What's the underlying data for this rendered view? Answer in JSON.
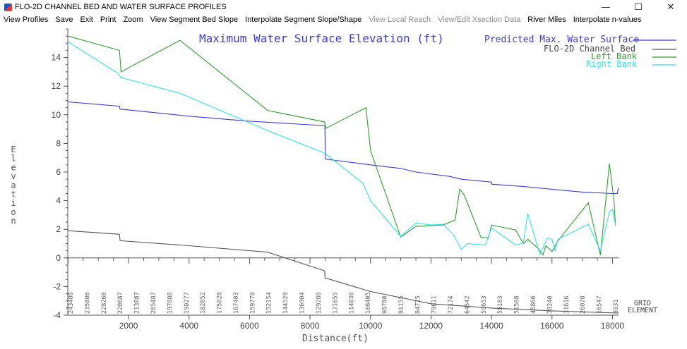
{
  "window": {
    "title": "FLO-2D CHANNEL BED AND WATER SURFACE PROFILES",
    "minimize_glyph": "—",
    "maximize_glyph": "☐",
    "close_glyph": "✕"
  },
  "menu": [
    {
      "id": "view-profiles",
      "label": "View Profiles",
      "enabled": true
    },
    {
      "id": "save",
      "label": "Save",
      "enabled": true
    },
    {
      "id": "exit",
      "label": "Exit",
      "enabled": true
    },
    {
      "id": "print",
      "label": "Print",
      "enabled": true
    },
    {
      "id": "zoom",
      "label": "Zoom",
      "enabled": true
    },
    {
      "id": "view-segment-bed-slope",
      "label": "View Segment Bed Slope",
      "enabled": true
    },
    {
      "id": "interpolate-segment-slope",
      "label": "Interpolate Segment Slope/Shape",
      "enabled": true
    },
    {
      "id": "view-local-reach",
      "label": "View Local Reach",
      "enabled": false
    },
    {
      "id": "view-edit-xsection",
      "label": "View/Edit Xsection Data",
      "enabled": false
    },
    {
      "id": "river-miles",
      "label": "River Miles",
      "enabled": true
    },
    {
      "id": "interpolate-n-values",
      "label": "Interpolate n-values",
      "enabled": true
    }
  ],
  "colors": {
    "water_surface": "#3a3adf",
    "channel_bed": "#555555",
    "left_bank": "#2ea02e",
    "right_bank": "#2ee6e6",
    "title": "#3a3adf",
    "axis": "#555555"
  },
  "chart_data": {
    "type": "line",
    "title": "Maximum Water Surface Elevation (ft)",
    "xlabel": "Distance(ft)",
    "ylabel": "Elevation",
    "grid_label": [
      "GRID",
      "ELEMENT"
    ],
    "xlim": [
      -10,
      18200
    ],
    "ylim": [
      -4,
      16
    ],
    "x_ticks": [
      2000,
      4000,
      6000,
      8000,
      10000,
      12000,
      14000,
      16000,
      18000
    ],
    "y_ticks": [
      -4,
      -2,
      0,
      2,
      4,
      6,
      8,
      10,
      12,
      14
    ],
    "grid": false,
    "legend_position": "top-right",
    "grid_element_labels": [
      "243408",
      "235806",
      "228266",
      "220687",
      "213087",
      "205487",
      "197888",
      "190277",
      "182652",
      "175028",
      "167403",
      "159778",
      "152154",
      "144529",
      "136904",
      "129280",
      "121655",
      "114030",
      "106405",
      "98780",
      "91155",
      "84715",
      "79611",
      "72174",
      "64542",
      "59653",
      "55103",
      "51508",
      "45866",
      "38240",
      "31616",
      "26078",
      "16547",
      "8931"
    ],
    "series": [
      {
        "name": "Predicted Max. Water Surface",
        "color_key": "water_surface",
        "points": [
          [
            0,
            10.9
          ],
          [
            1700,
            10.6
          ],
          [
            1720,
            10.4
          ],
          [
            4000,
            9.9
          ],
          [
            6000,
            9.55
          ],
          [
            8000,
            9.3
          ],
          [
            8490,
            9.25
          ],
          [
            8510,
            6.9
          ],
          [
            10000,
            6.5
          ],
          [
            11000,
            6.25
          ],
          [
            11500,
            6.0
          ],
          [
            12600,
            5.7
          ],
          [
            13000,
            5.5
          ],
          [
            14000,
            5.3
          ],
          [
            14010,
            5.15
          ],
          [
            15000,
            5.0
          ],
          [
            16000,
            4.8
          ],
          [
            17000,
            4.6
          ],
          [
            18000,
            4.5
          ],
          [
            18160,
            4.5
          ],
          [
            18200,
            4.9
          ]
        ]
      },
      {
        "name": "FLO-2D Channel Bed",
        "color_key": "channel_bed",
        "points": [
          [
            0,
            1.9
          ],
          [
            1700,
            1.65
          ],
          [
            1720,
            1.2
          ],
          [
            4000,
            0.85
          ],
          [
            6600,
            0.4
          ],
          [
            8480,
            -0.9
          ],
          [
            8500,
            -1.4
          ],
          [
            10000,
            -2.35
          ],
          [
            12000,
            -3.2
          ],
          [
            14000,
            -3.5
          ],
          [
            16000,
            -3.7
          ],
          [
            18200,
            -3.85
          ]
        ]
      },
      {
        "name": "Left Bank",
        "color_key": "left_bank",
        "points": [
          [
            0,
            15.5
          ],
          [
            1700,
            14.5
          ],
          [
            1750,
            13.0
          ],
          [
            3700,
            15.2
          ],
          [
            6600,
            10.3
          ],
          [
            8480,
            9.5
          ],
          [
            8520,
            9.05
          ],
          [
            9850,
            10.5
          ],
          [
            10000,
            7.5
          ],
          [
            11000,
            1.45
          ],
          [
            11500,
            2.2
          ],
          [
            12400,
            2.3
          ],
          [
            12800,
            2.65
          ],
          [
            12950,
            4.8
          ],
          [
            13100,
            4.4
          ],
          [
            13650,
            1.45
          ],
          [
            13900,
            1.4
          ],
          [
            14000,
            2.3
          ],
          [
            14800,
            1.95
          ],
          [
            15050,
            1.0
          ],
          [
            15200,
            1.3
          ],
          [
            15550,
            0.65
          ],
          [
            15700,
            0.2
          ],
          [
            15800,
            0.85
          ],
          [
            16000,
            0.45
          ],
          [
            16200,
            1.2
          ],
          [
            17200,
            3.85
          ],
          [
            17600,
            0.2
          ],
          [
            17900,
            6.6
          ],
          [
            18050,
            4.0
          ],
          [
            18100,
            2.25
          ]
        ]
      },
      {
        "name": "Right Bank",
        "color_key": "right_bank",
        "points": [
          [
            0,
            15.1
          ],
          [
            1650,
            12.9
          ],
          [
            1750,
            12.6
          ],
          [
            3700,
            11.5
          ],
          [
            6600,
            8.9
          ],
          [
            8500,
            7.3
          ],
          [
            9750,
            5.2
          ],
          [
            10000,
            4.0
          ],
          [
            11000,
            1.5
          ],
          [
            11500,
            2.45
          ],
          [
            12000,
            2.3
          ],
          [
            12400,
            2.35
          ],
          [
            12750,
            1.6
          ],
          [
            13000,
            0.6
          ],
          [
            13200,
            1.0
          ],
          [
            13800,
            0.9
          ],
          [
            14000,
            2.1
          ],
          [
            14800,
            0.9
          ],
          [
            15050,
            1.05
          ],
          [
            15200,
            3.1
          ],
          [
            15600,
            0.25
          ],
          [
            15850,
            1.4
          ],
          [
            16000,
            1.3
          ],
          [
            16100,
            0.5
          ],
          [
            16200,
            1.3
          ],
          [
            17200,
            2.35
          ],
          [
            17600,
            0.5
          ],
          [
            17900,
            3.2
          ],
          [
            18000,
            3.4
          ],
          [
            18100,
            2.3
          ]
        ]
      }
    ]
  }
}
